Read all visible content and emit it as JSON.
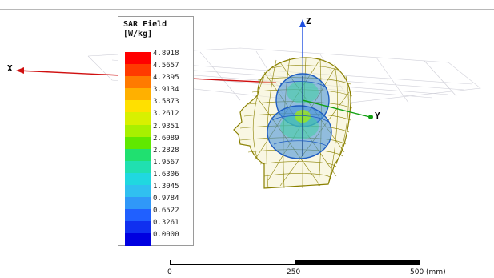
{
  "legend": {
    "title_line1": "SAR Field",
    "title_line2": "[W/kg]",
    "values": [
      "4.8918",
      "4.5657",
      "4.2395",
      "3.9134",
      "3.5873",
      "3.2612",
      "2.9351",
      "2.6089",
      "2.2828",
      "1.9567",
      "1.6306",
      "1.3045",
      "0.9784",
      "0.6522",
      "0.3261",
      "0.0000"
    ],
    "colors": [
      "#ff0000",
      "#ff3a00",
      "#ff7a00",
      "#ffb000",
      "#ffe000",
      "#d8f000",
      "#a8f000",
      "#60e800",
      "#20e070",
      "#20e0b0",
      "#20d8e0",
      "#30c0f0",
      "#3098f8",
      "#2060ff",
      "#1030f0",
      "#0000e0"
    ]
  },
  "axes": {
    "x_label": "X",
    "y_label": "Y",
    "z_label": "Z",
    "x_color": "#d01010",
    "y_color": "#10a010",
    "z_color": "#2050e0"
  },
  "scale": {
    "label_start": "0",
    "label_mid": "250",
    "label_end": "500 (mm)"
  },
  "icons": {
    "head_model": "wireframe-head-icon",
    "antenna": "dipole-field-icon"
  }
}
